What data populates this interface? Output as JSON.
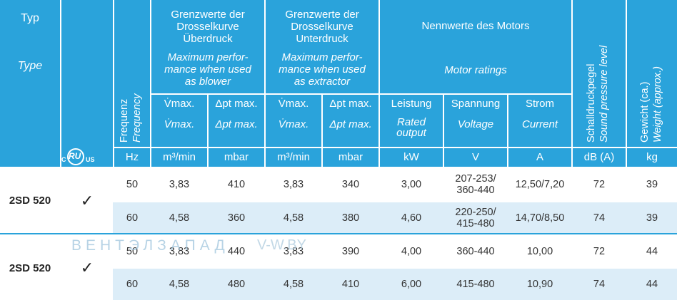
{
  "header": {
    "typ": "Typ",
    "type": "Type",
    "ul_c": "c",
    "ul_mark": "RU",
    "ul_us": "US",
    "freq_de": "Frequenz",
    "freq_en": "Frequency",
    "grp_blower_de": [
      "Grenzwerte der",
      "Drosselkurve",
      "Überdruck"
    ],
    "grp_blower_en": [
      "Maximum perfor-",
      "mance when used",
      "as blower"
    ],
    "grp_extractor_de": [
      "Grenzwerte der",
      "Drosselkurve",
      "Unterdruck"
    ],
    "grp_extractor_en": [
      "Maximum perfor-",
      "mance when used",
      "as extractor"
    ],
    "grp_motor_de": "Nennwerte des Motors",
    "grp_motor_en": "Motor ratings",
    "vmax_de": "V̇max.",
    "vmax_en": "V̇max.",
    "dpt_de": "Δpt max.",
    "dpt_en": "Δpt max.",
    "leistung": "Leistung",
    "leistung_en": [
      "Rated",
      "output"
    ],
    "spannung": "Spannung",
    "spannung_en": "Voltage",
    "strom": "Strom",
    "strom_en": "Current",
    "sound_de": "Schalldruckpegel",
    "sound_en": "Sound pressure level",
    "weight_de": "Gewicht (ca.)",
    "weight_en": "Weight (approx.)",
    "units": [
      "Hz",
      "m³/min",
      "mbar",
      "m³/min",
      "mbar",
      "kW",
      "V",
      "A",
      "dB (A)",
      "kg"
    ]
  },
  "groups": [
    {
      "type": "2SD 520",
      "check": "✓",
      "rows": [
        [
          "50",
          "3,83",
          "410",
          "3,83",
          "340",
          "3,00",
          "207-253/\n360-440",
          "12,50/7,20",
          "72",
          "39"
        ],
        [
          "60",
          "4,58",
          "360",
          "4,58",
          "380",
          "4,60",
          "220-250/\n415-480",
          "14,70/8,50",
          "74",
          "39"
        ]
      ]
    },
    {
      "type": "2SD 520",
      "check": "✓",
      "rows": [
        [
          "50",
          "3,83",
          "440",
          "3,83",
          "390",
          "4,00",
          "360-440",
          "10,00",
          "72",
          "44"
        ],
        [
          "60",
          "4,58",
          "480",
          "4,58",
          "410",
          "6,00",
          "415-480",
          "10,90",
          "74",
          "44"
        ]
      ]
    }
  ],
  "watermark": "ВЕНТЭЛЗАПАД",
  "watermark2": "V-W.BY",
  "colors": {
    "header": "#2aa3db",
    "row_alt": "#dcedf8",
    "text": "#333333"
  }
}
